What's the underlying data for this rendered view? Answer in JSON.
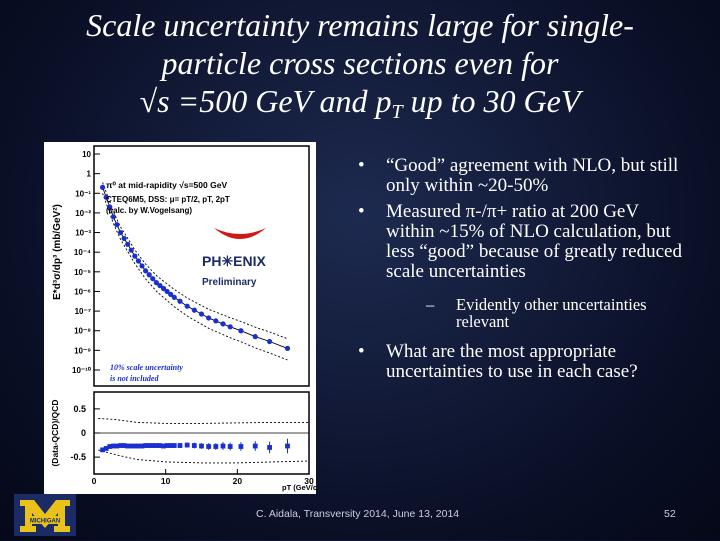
{
  "slide": {
    "title_lines": [
      "Scale uncertainty remains large for single-",
      "particle cross sections even for"
    ],
    "title_line3_a": "√s =500 GeV and p",
    "title_line3_sub": "T",
    "title_line3_b": " up to 30 GeV",
    "bullets": [
      "“Good” agreement with NLO, but still only within ~20-50%",
      "Measured π-/π+ ratio at 200 GeV within ~15% of NLO calculation, but less “good” because of greatly reduced scale uncertainties"
    ],
    "sub_bullet": "Evidently other uncertainties relevant",
    "bullet3": "What are the most appropriate uncertainties to use in each case?",
    "bullet_marker": "•",
    "sub_marker": "–",
    "footer": "C. Aidala, Transversity 2014, June 13, 2014",
    "page_number": "52",
    "logo_text": "MICHIGAN"
  },
  "chart_data": [
    {
      "type": "scatter",
      "panel": "top",
      "yscale": "log",
      "ylabel": "E*d³σ/dp³ (mb/GeV²)",
      "yticks": [
        "10",
        "1",
        "10⁻¹",
        "10⁻²",
        "10⁻³",
        "10⁻⁴",
        "10⁻⁵",
        "10⁻⁶",
        "10⁻⁷",
        "10⁻⁸",
        "10⁻⁹",
        "10⁻¹⁰"
      ],
      "ylim_exp": [
        -10,
        1
      ],
      "xlim": [
        0,
        30
      ],
      "annotations": [
        "π⁰ at mid-rapidity √s=500 GeV",
        "CTEQ6M5, DSS: μ= pT/2, pT, 2pT",
        "(calc. by W.Vogelsang)",
        "PH✳ENIX",
        "Preliminary",
        "10% scale uncertainty",
        "is not included"
      ],
      "series": [
        {
          "x": [
            1.2,
            1.7,
            2.2,
            2.7,
            3.2,
            3.7,
            4.2,
            4.7,
            5.2,
            5.7,
            6.2,
            6.7,
            7.2,
            7.7,
            8.2,
            8.7,
            9.2,
            9.7,
            10.2,
            10.7,
            11.2,
            12,
            13,
            14,
            15,
            16,
            17,
            18,
            19,
            20.5,
            22.5,
            24.5,
            27
          ],
          "y_exp": [
            -0.7,
            -1.2,
            -1.7,
            -2.2,
            -2.6,
            -3.0,
            -3.3,
            -3.6,
            -3.9,
            -4.2,
            -4.45,
            -4.7,
            -4.95,
            -5.15,
            -5.35,
            -5.55,
            -5.7,
            -5.85,
            -6.0,
            -6.15,
            -6.3,
            -6.5,
            -6.75,
            -6.95,
            -7.15,
            -7.35,
            -7.5,
            -7.65,
            -7.8,
            -8.0,
            -8.3,
            -8.55,
            -8.9
          ]
        }
      ]
    },
    {
      "type": "scatter",
      "panel": "bottom",
      "ylabel": "(Data-QCD)/QCD",
      "xlabel": "pT (GeV/c)",
      "yticks": [
        "0.5",
        "0",
        "-0.5"
      ],
      "xticks": [
        "0",
        "10",
        "20",
        "30"
      ],
      "xlim": [
        0,
        30
      ],
      "ylim": [
        -0.85,
        0.85
      ],
      "series": [
        {
          "x": [
            1.2,
            1.7,
            2.2,
            2.7,
            3.2,
            3.7,
            4.2,
            4.7,
            5.2,
            5.7,
            6.2,
            6.7,
            7.2,
            7.7,
            8.2,
            8.7,
            9.2,
            9.7,
            10.2,
            10.7,
            11.2,
            12,
            13,
            14,
            15,
            16,
            17,
            18,
            19,
            20.5,
            22.5,
            24.5,
            27
          ],
          "y": [
            -0.35,
            -0.32,
            -0.28,
            -0.27,
            -0.27,
            -0.26,
            -0.26,
            -0.27,
            -0.27,
            -0.27,
            -0.27,
            -0.27,
            -0.26,
            -0.26,
            -0.26,
            -0.26,
            -0.26,
            -0.27,
            -0.26,
            -0.26,
            -0.26,
            -0.26,
            -0.25,
            -0.26,
            -0.27,
            -0.28,
            -0.28,
            -0.27,
            -0.28,
            -0.28,
            -0.27,
            -0.3,
            -0.27
          ],
          "err": [
            0.04,
            0.03,
            0.03,
            0.03,
            0.03,
            0.03,
            0.03,
            0.03,
            0.03,
            0.03,
            0.03,
            0.03,
            0.03,
            0.03,
            0.03,
            0.04,
            0.04,
            0.04,
            0.04,
            0.04,
            0.04,
            0.05,
            0.05,
            0.06,
            0.06,
            0.07,
            0.07,
            0.08,
            0.08,
            0.09,
            0.1,
            0.12,
            0.15
          ]
        }
      ],
      "bands": {
        "upper_x": [
          0.6,
          3,
          6,
          10,
          15,
          20,
          25,
          30
        ],
        "upper_y": [
          0.3,
          0.28,
          0.22,
          0.2,
          0.2,
          0.21,
          0.22,
          0.22
        ],
        "lower_x": [
          0.6,
          3,
          6,
          10,
          15,
          20,
          25,
          30
        ],
        "lower_y": [
          -0.35,
          -0.45,
          -0.55,
          -0.6,
          -0.62,
          -0.62,
          -0.6,
          -0.58
        ]
      }
    }
  ],
  "colors": {
    "marker": "#1a2fd0",
    "annotation_blue": "#1a2fd0",
    "phenix_red": "#d01818",
    "logo_blue": "#1b2b66",
    "logo_maize": "#e8c21a"
  }
}
